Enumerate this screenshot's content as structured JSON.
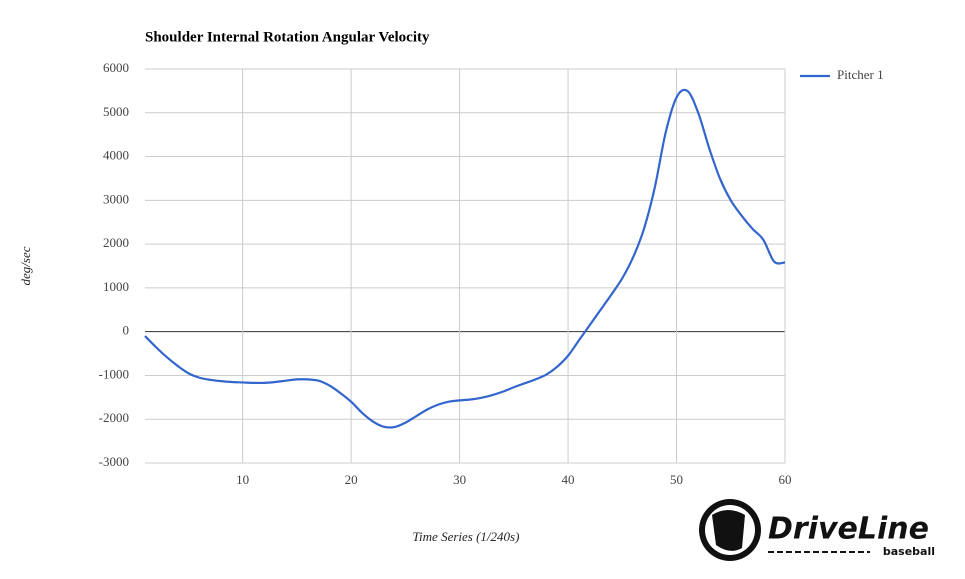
{
  "chart_data": {
    "type": "line",
    "title": "Shoulder Internal Rotation Angular Velocity",
    "x_label": "Time Series (1/240s)",
    "y_label": "deg/sec",
    "x": [
      1,
      2,
      3,
      4,
      5,
      6,
      7,
      8,
      9,
      10,
      11,
      12,
      13,
      14,
      15,
      16,
      17,
      18,
      19,
      20,
      21,
      22,
      23,
      24,
      25,
      26,
      27,
      28,
      29,
      30,
      31,
      32,
      33,
      34,
      35,
      36,
      37,
      38,
      39,
      40,
      41,
      42,
      43,
      44,
      45,
      46,
      47,
      48,
      49,
      50,
      51,
      52,
      53,
      54,
      55,
      56,
      57,
      58,
      59,
      60
    ],
    "series": [
      {
        "name": "Pitcher 1",
        "color": "#3366cc",
        "values": [
          -100,
          -350,
          -580,
          -780,
          -950,
          -1050,
          -1100,
          -1130,
          -1150,
          -1160,
          -1170,
          -1170,
          -1150,
          -1120,
          -1090,
          -1090,
          -1120,
          -1230,
          -1400,
          -1600,
          -1850,
          -2050,
          -2170,
          -2180,
          -2080,
          -1930,
          -1780,
          -1670,
          -1600,
          -1570,
          -1550,
          -1510,
          -1450,
          -1370,
          -1270,
          -1180,
          -1090,
          -980,
          -800,
          -550,
          -200,
          150,
          500,
          850,
          1220,
          1700,
          2350,
          3300,
          4550,
          5350,
          5500,
          5000,
          4200,
          3500,
          3000,
          2650,
          2350,
          2100,
          1600,
          1580
        ]
      }
    ],
    "xlim": [
      1,
      60
    ],
    "xticks": [
      10,
      20,
      30,
      40,
      50,
      60
    ],
    "ylim": [
      -3000,
      6000
    ],
    "yticks": [
      -3000,
      -2000,
      -1000,
      0,
      1000,
      2000,
      3000,
      4000,
      5000,
      6000
    ],
    "grid": true,
    "legend": "right"
  },
  "logo": {
    "name": "DriveLine",
    "sub": "baseball"
  }
}
